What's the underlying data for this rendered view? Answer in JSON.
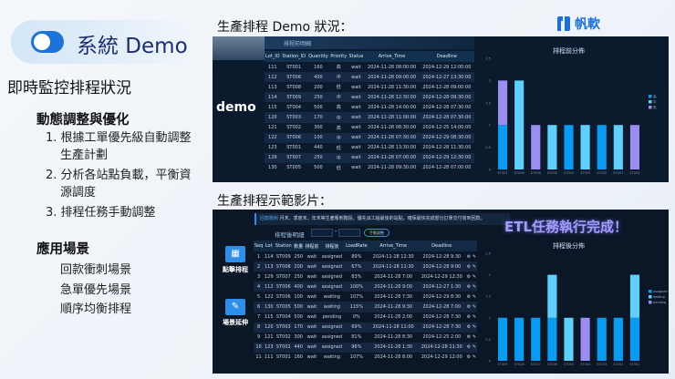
{
  "slide": {
    "header": {
      "title": "系統 Demo",
      "icon": "toggle-icon"
    },
    "subtitle": "即時監控排程狀況",
    "section1": {
      "title": "動態調整與優化",
      "items": [
        "1. 根據工單優先級自動調整生產計劃",
        "2. 分析各站點負載，平衡資源調度",
        "3. 排程任務手動調整"
      ]
    },
    "section2": {
      "title": "應用場景",
      "items": [
        "回款衝刺場景",
        "急單優先場景",
        "順序均衡排程"
      ]
    },
    "screenshot1_title": "生產排程 Demo 狀況：",
    "screenshot2_title": "生產排程示範影片：",
    "logo": {
      "text": "帆軟",
      "color": "#1a6fd8"
    }
  },
  "dash1": {
    "side_label": "demo",
    "panel_title": "排程前明細",
    "columns": [
      "Lot_ID",
      "Station_ID",
      "Quantity",
      "Priority",
      "Status",
      "Arrive_Time",
      "Deadline"
    ],
    "rows": [
      [
        "111",
        "ST001",
        "160",
        "高",
        "wait",
        "2024-11-28 08:00:00",
        "2024-12-29 12:00:00"
      ],
      [
        "112",
        "ST006",
        "400",
        "中",
        "wait",
        "2024-11-28 09:00:00",
        "2024-12-27 13:30:00"
      ],
      [
        "113",
        "ST008",
        "200",
        "低",
        "wait",
        "2024-11-28 11:30:00",
        "2024-12-28 09:00:00"
      ],
      [
        "114",
        "ST009",
        "250",
        "中",
        "wait",
        "2024-11-28 12:30:00",
        "2024-12-28 09:30:00"
      ],
      [
        "115",
        "ST004",
        "500",
        "高",
        "wait",
        "2024-11-28 14:00:00",
        "2024-12-28 07:30:00"
      ],
      [
        "120",
        "ST003",
        "170",
        "中",
        "wait",
        "2024-11-28 11:00:00",
        "2024-12-28 07:30:00"
      ],
      [
        "121",
        "ST002",
        "300",
        "高",
        "wait",
        "2024-11-28 08:30:00",
        "2024-12-25 14:00:00"
      ],
      [
        "122",
        "ST006",
        "100",
        "中",
        "wait",
        "2024-11-28 07:30:00",
        "2024-12-29 08:30:00"
      ],
      [
        "123",
        "ST001",
        "440",
        "低",
        "wait",
        "2024-11-28 13:30:00",
        "2024-12-28 11:30:00"
      ],
      [
        "129",
        "ST007",
        "250",
        "中",
        "wait",
        "2024-11-28 07:00:00",
        "2024-12-29 12:30:00"
      ],
      [
        "130",
        "ST005",
        "500",
        "低",
        "wait",
        "2024-11-28 09:30:00",
        "2024-12-28 07:00:00"
      ]
    ]
  },
  "dash2": {
    "banner_tag": "回款衝刺",
    "banner_text": "月末、季度末、年末等生產衝刺階段，優先派工給最後的站點，確保最快完成部分訂單交付收到回款。",
    "etl_message": "ETL任務執行完成！",
    "panel_title": "排程後明細",
    "manual_button": "手動調整",
    "range_separator": "-",
    "left_buttons": [
      {
        "label": "點擊排程",
        "icon": "calendar-icon"
      },
      {
        "label": "場景延伸",
        "icon": "document-edit-icon"
      }
    ],
    "columns": [
      "Seq",
      "Lot",
      "Station",
      "數量",
      "排程前",
      "排程後",
      "LoadRate",
      "Arrive_Time",
      "Deadline"
    ],
    "rows": [
      [
        "1",
        "114",
        "ST009",
        "250",
        "wait",
        "assigned",
        "89%",
        "2024-11-28 12:30",
        "2024-12-28 9:30"
      ],
      [
        "2",
        "113",
        "ST008",
        "200",
        "wait",
        "assigned",
        "67%",
        "2024-11-28 11:30",
        "2024-12-28 9:00"
      ],
      [
        "3",
        "129",
        "ST007",
        "250",
        "wait",
        "assigned",
        "83%",
        "2024-11-28 7:00",
        "2024-12-29 12:30"
      ],
      [
        "4",
        "112",
        "ST006",
        "400",
        "wait",
        "assigned",
        "100%",
        "2024-11-28 9:00",
        "2024-12-27 1:30"
      ],
      [
        "5",
        "122",
        "ST006",
        "100",
        "wait",
        "waiting",
        "107%",
        "2024-11-28 7:30",
        "2024-12-29 8:30"
      ],
      [
        "6",
        "130",
        "ST005",
        "500",
        "wait",
        "waiting",
        "115%",
        "2024-11-28 9:30",
        "2024-12-28 7:00"
      ],
      [
        "7",
        "115",
        "ST004",
        "500",
        "wait",
        "pending",
        "0%",
        "2024-11-28 2:00",
        "2024-12-28 7:30"
      ],
      [
        "8",
        "120",
        "ST003",
        "170",
        "wait",
        "assigned",
        "69%",
        "2024-11-28 11:00",
        "2024-12-28 7:30"
      ],
      [
        "9",
        "121",
        "ST002",
        "300",
        "wait",
        "assigned",
        "81%",
        "2024-11-28 8:30",
        "2024-12-25 2:00"
      ],
      [
        "10",
        "123",
        "ST001",
        "440",
        "wait",
        "assigned",
        "96%",
        "2024-11-28 1:30",
        "2024-12-28 11:30"
      ],
      [
        "11",
        "111",
        "ST001",
        "160",
        "wait",
        "waiting",
        "107%",
        "2024-11-28 8:00",
        "2024-12-29 12:00"
      ]
    ]
  },
  "chart_data": [
    {
      "type": "bar",
      "stacked": true,
      "title": "排程前分佈",
      "categories": [
        "ST001",
        "ST006",
        "ST008",
        "ST009",
        "ST004",
        "ST003",
        "ST002",
        "ST007",
        "ST005"
      ],
      "series": [
        {
          "name": "高",
          "color": "#0a9cf0",
          "values": [
            1,
            0,
            0,
            0,
            1,
            0,
            1,
            0,
            0
          ]
        },
        {
          "name": "中",
          "color": "#5fd0fb",
          "values": [
            0,
            2,
            0,
            1,
            0,
            1,
            0,
            1,
            0
          ]
        },
        {
          "name": "低",
          "color": "#9b8ef0",
          "values": [
            1,
            0,
            1,
            0,
            0,
            0,
            0,
            0,
            1
          ]
        }
      ],
      "ylim": [
        0,
        2.5
      ],
      "yticks": [
        0,
        0.5,
        1,
        1.5,
        2,
        2.5
      ],
      "legend": "right"
    },
    {
      "type": "bar",
      "stacked": true,
      "title": "排程後分佈",
      "categories": [
        "ST009",
        "ST008",
        "ST007",
        "ST006",
        "ST005",
        "ST004",
        "ST003",
        "ST002",
        "ST001"
      ],
      "series": [
        {
          "name": "assigned",
          "color": "#0a9cf0",
          "values": [
            1,
            1,
            1,
            1,
            0,
            0,
            1,
            1,
            1
          ]
        },
        {
          "name": "waiting",
          "color": "#5fd0fb",
          "values": [
            0,
            0,
            0,
            1,
            1,
            0,
            0,
            0,
            1
          ]
        },
        {
          "name": "pending",
          "color": "#9b8ef0",
          "values": [
            0,
            0,
            0,
            0,
            0,
            1,
            0,
            0,
            0
          ]
        }
      ],
      "ylim": [
        0,
        2.5
      ],
      "yticks": [
        0,
        0.5,
        1,
        1.5,
        2,
        2.5
      ],
      "legend": "right"
    }
  ]
}
